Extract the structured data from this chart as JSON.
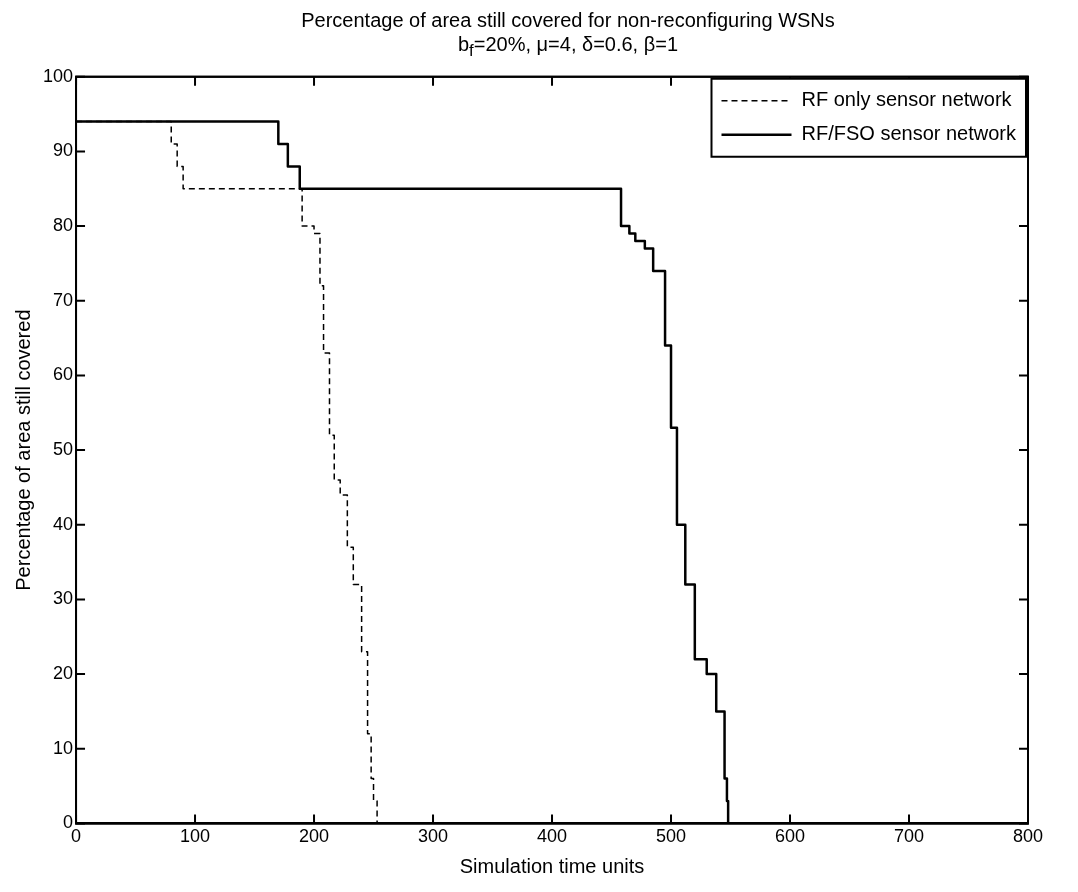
{
  "chart_data": {
    "type": "step",
    "title": "Percentage of area still covered for non-reconfiguring WSNs",
    "subtitle": "b$_{f}$=20%, μ=4, δ=0.6, β=1",
    "xlabel": "Simulation time units",
    "ylabel": "Percentage of area still covered",
    "xlim": [
      0,
      800
    ],
    "xticks": [
      0,
      100,
      200,
      300,
      400,
      500,
      600,
      700,
      800
    ],
    "ylim": [
      0,
      100
    ],
    "yticks": [
      0,
      10,
      20,
      30,
      40,
      50,
      60,
      70,
      80,
      90,
      100
    ],
    "grid": false,
    "legend": "top right",
    "marker": "none",
    "series": [
      {
        "name": "RF only sensor network",
        "color": "#000000",
        "line_style": "dashed",
        "x": [
          0,
          80,
          85,
          90,
          102,
          190,
          200,
          205,
          208,
          213,
          217,
          222,
          228,
          233,
          240,
          245,
          248,
          250,
          253
        ],
        "values": [
          94,
          91,
          88,
          85,
          85,
          80,
          79,
          72,
          63,
          52,
          46,
          44,
          37,
          32,
          23,
          12,
          6,
          3,
          0
        ]
      },
      {
        "name": "RF/FSO sensor network",
        "color": "#000000",
        "line_style": "solid",
        "x": [
          0,
          170,
          178,
          188,
          458,
          465,
          470,
          478,
          485,
          495,
          500,
          505,
          512,
          520,
          530,
          538,
          545,
          547,
          548
        ],
        "values": [
          94,
          91,
          88,
          85,
          80,
          79,
          78,
          77,
          74,
          64,
          53,
          40,
          32,
          22,
          20,
          15,
          6,
          3,
          0
        ]
      }
    ]
  }
}
